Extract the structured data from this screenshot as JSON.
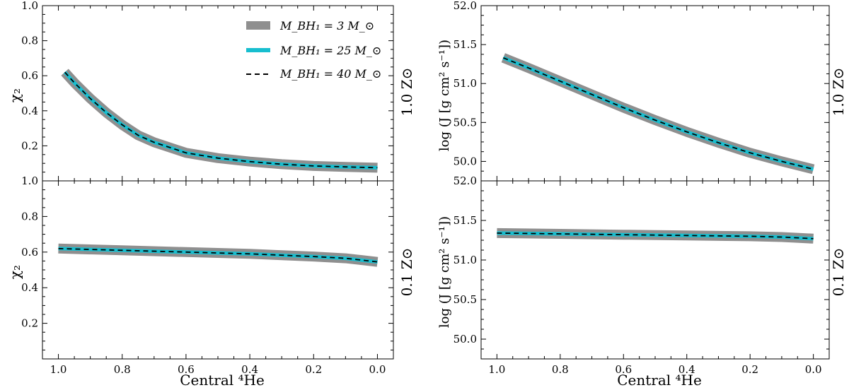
{
  "colors": {
    "bh3": "#8f8f8f",
    "bh25": "#17becf",
    "bh40": "#000000"
  },
  "legend": {
    "bh3": "M_BH₁ = 3 M_⊙",
    "bh25": "M_BH₁ = 25 M_⊙",
    "bh40": "M_BH₁ = 40 M_⊙"
  },
  "labels": {
    "x_left": "Central ⁴He",
    "x_right": "Central ⁴He",
    "y_chi": "χ₂",
    "y_j": "log (J [g cm² s⁻¹])",
    "z_top": "1.0 Z⊙",
    "z_bottom": "0.1 Z⊙"
  },
  "chart_data": [
    {
      "type": "line",
      "panel": "top-left",
      "xlabel": "",
      "ylabel": "χ₂",
      "right_label": "1.0 Z⊙",
      "xlim": [
        1.05,
        -0.05
      ],
      "ylim": [
        0.0,
        1.0
      ],
      "xticks": [
        "1.0",
        "0.8",
        "0.6",
        "0.4",
        "0.2",
        "0.0"
      ],
      "yticks": [
        "0.2",
        "0.4",
        "0.6",
        "0.8",
        "1.0"
      ],
      "legend_position": "top-right",
      "x": [
        0.98,
        0.95,
        0.9,
        0.85,
        0.8,
        0.75,
        0.7,
        0.6,
        0.5,
        0.4,
        0.3,
        0.2,
        0.1,
        0.0
      ],
      "series": [
        {
          "name": "M_BH₁ = 3 M_⊙",
          "style": "thick-gray",
          "values": [
            0.62,
            0.56,
            0.47,
            0.39,
            0.32,
            0.26,
            0.22,
            0.16,
            0.13,
            0.11,
            0.095,
            0.085,
            0.08,
            0.075
          ]
        },
        {
          "name": "M_BH₁ = 25 M_⊙",
          "style": "cyan",
          "values": [
            0.62,
            0.56,
            0.47,
            0.39,
            0.32,
            0.26,
            0.22,
            0.16,
            0.13,
            0.11,
            0.095,
            0.085,
            0.08,
            0.075
          ]
        },
        {
          "name": "M_BH₁ = 40 M_⊙",
          "style": "dashed-black",
          "values": [
            0.62,
            0.56,
            0.47,
            0.39,
            0.32,
            0.26,
            0.22,
            0.16,
            0.13,
            0.11,
            0.095,
            0.085,
            0.08,
            0.075
          ]
        }
      ]
    },
    {
      "type": "line",
      "panel": "bottom-left",
      "xlabel": "Central ⁴He",
      "ylabel": "χ₂",
      "right_label": "0.1 Z⊙",
      "xlim": [
        1.05,
        -0.05
      ],
      "ylim": [
        0.0,
        1.0
      ],
      "xticks": [
        "1.0",
        "0.8",
        "0.6",
        "0.4",
        "0.2",
        "0.0"
      ],
      "yticks": [
        "0.2",
        "0.4",
        "0.6",
        "0.8",
        "1.0"
      ],
      "x": [
        1.0,
        0.8,
        0.6,
        0.4,
        0.2,
        0.1,
        0.05,
        0.0
      ],
      "series": [
        {
          "name": "M_BH₁ = 3 M_⊙",
          "style": "thick-gray",
          "values": [
            0.62,
            0.61,
            0.6,
            0.59,
            0.575,
            0.565,
            0.555,
            0.545
          ]
        },
        {
          "name": "M_BH₁ = 25 M_⊙",
          "style": "cyan",
          "values": [
            0.62,
            0.61,
            0.6,
            0.59,
            0.575,
            0.565,
            0.555,
            0.545
          ]
        },
        {
          "name": "M_BH₁ = 40 M_⊙",
          "style": "dashed-black",
          "values": [
            0.62,
            0.61,
            0.6,
            0.59,
            0.575,
            0.565,
            0.555,
            0.545
          ]
        }
      ]
    },
    {
      "type": "line",
      "panel": "top-right",
      "xlabel": "",
      "ylabel": "log (J [g cm² s⁻¹])",
      "right_label": "1.0 Z⊙",
      "xlim": [
        1.05,
        -0.05
      ],
      "ylim": [
        49.75,
        52.0
      ],
      "xticks": [
        "1.0",
        "0.8",
        "0.6",
        "0.4",
        "0.2",
        "0.0"
      ],
      "yticks": [
        "50.0",
        "50.5",
        "51.0",
        "51.5",
        "52.0"
      ],
      "x": [
        0.98,
        0.9,
        0.8,
        0.7,
        0.6,
        0.5,
        0.4,
        0.3,
        0.2,
        0.1,
        0.0
      ],
      "series": [
        {
          "name": "M_BH₁ = 3 M_⊙",
          "style": "thick-gray",
          "values": [
            51.33,
            51.2,
            51.03,
            50.86,
            50.69,
            50.53,
            50.38,
            50.24,
            50.11,
            50.0,
            49.9
          ]
        },
        {
          "name": "M_BH₁ = 25 M_⊙",
          "style": "cyan",
          "values": [
            51.33,
            51.2,
            51.03,
            50.86,
            50.69,
            50.53,
            50.38,
            50.24,
            50.11,
            50.0,
            49.9
          ]
        },
        {
          "name": "M_BH₁ = 40 M_⊙",
          "style": "dashed-black",
          "values": [
            51.33,
            51.2,
            51.03,
            50.86,
            50.69,
            50.53,
            50.38,
            50.24,
            50.11,
            50.0,
            49.9
          ]
        }
      ]
    },
    {
      "type": "line",
      "panel": "bottom-right",
      "xlabel": "Central ⁴He",
      "ylabel": "log (J [g cm² s⁻¹])",
      "right_label": "0.1 Z⊙",
      "xlim": [
        1.05,
        -0.05
      ],
      "ylim": [
        49.75,
        52.0
      ],
      "xticks": [
        "1.0",
        "0.8",
        "0.6",
        "0.4",
        "0.2",
        "0.0"
      ],
      "yticks": [
        "50.0",
        "50.5",
        "51.0",
        "51.5",
        "52.0"
      ],
      "x": [
        1.0,
        0.8,
        0.6,
        0.4,
        0.2,
        0.1,
        0.05,
        0.0
      ],
      "series": [
        {
          "name": "M_BH₁ = 3 M_⊙",
          "style": "thick-gray",
          "values": [
            51.34,
            51.33,
            51.32,
            51.31,
            51.3,
            51.29,
            51.28,
            51.27
          ]
        },
        {
          "name": "M_BH₁ = 25 M_⊙",
          "style": "cyan",
          "values": [
            51.34,
            51.33,
            51.32,
            51.31,
            51.3,
            51.29,
            51.28,
            51.27
          ]
        },
        {
          "name": "M_BH₁ = 40 M_⊙",
          "style": "dashed-black",
          "values": [
            51.34,
            51.33,
            51.32,
            51.31,
            51.3,
            51.29,
            51.28,
            51.27
          ]
        }
      ]
    }
  ]
}
